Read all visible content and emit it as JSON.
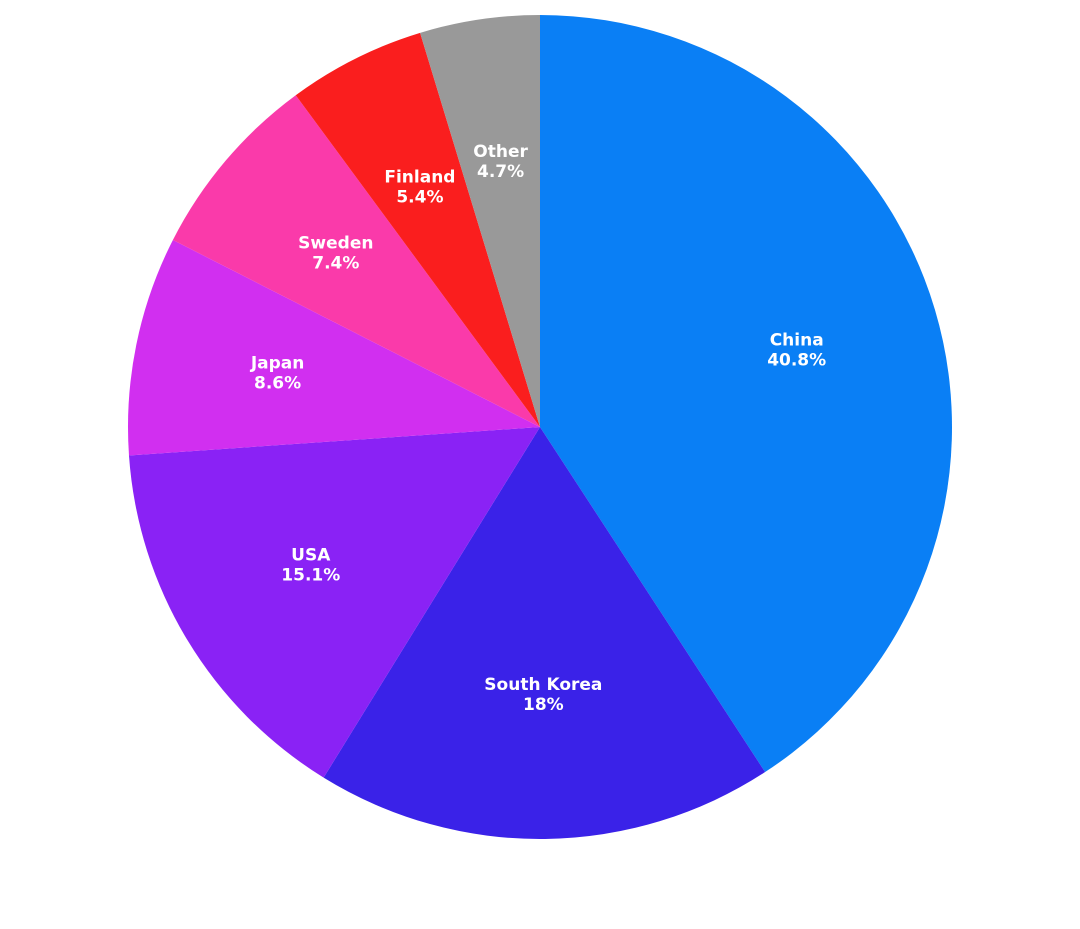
{
  "chart_data": {
    "type": "pie",
    "categories": [
      "China",
      "South Korea",
      "USA",
      "Japan",
      "Sweden",
      "Finland",
      "Other"
    ],
    "values": [
      40.8,
      18,
      15.1,
      8.6,
      7.4,
      5.4,
      4.7
    ],
    "value_labels": [
      "40.8%",
      "18%",
      "15.1%",
      "8.6%",
      "7.4%",
      "5.4%",
      "4.7%"
    ],
    "colors": [
      "#0a7ff5",
      "#3a22e8",
      "#8a22f5",
      "#d12ff0",
      "#fa3aaa",
      "#fa1e1e",
      "#999999"
    ]
  }
}
